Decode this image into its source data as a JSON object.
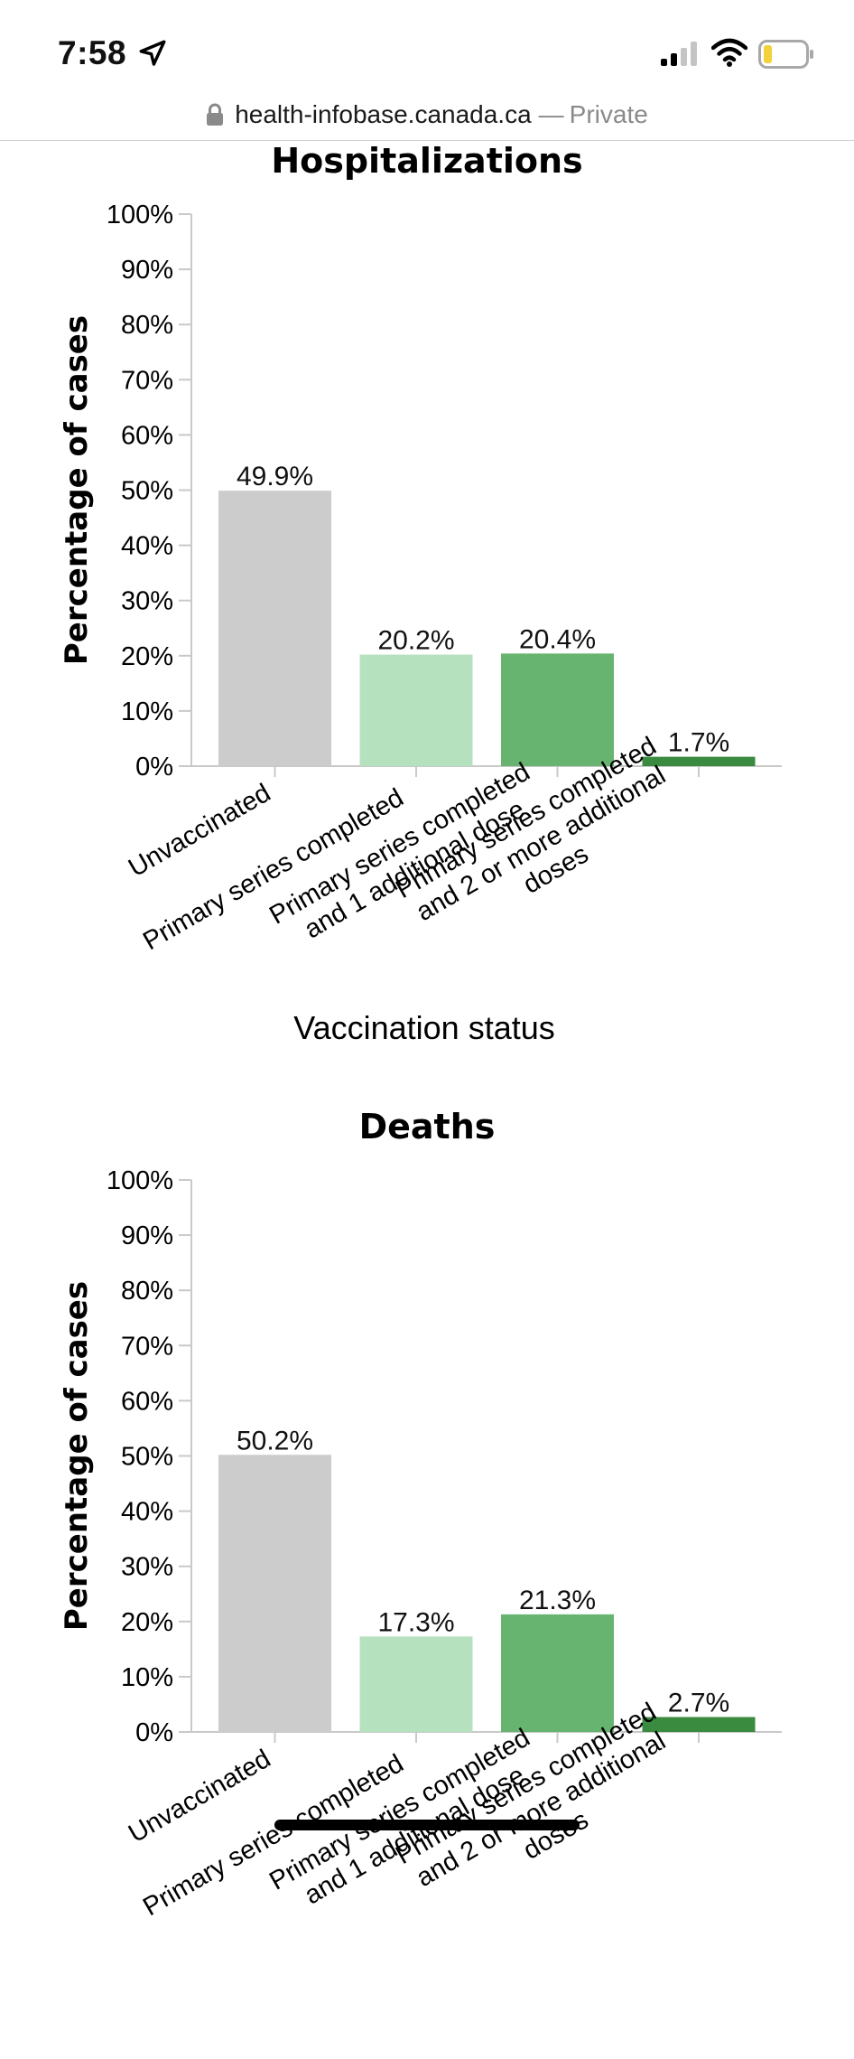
{
  "status_bar": {
    "time": "7:58",
    "icons": [
      "location-arrow-icon",
      "signal-icon",
      "wifi-icon",
      "battery-icon"
    ]
  },
  "browser": {
    "url_host": "health-infobase.canada.ca",
    "separator": "—",
    "mode": "Private"
  },
  "colors": {
    "Unvaccinated": "#cccccc",
    "Primary series completed": "#b6e1bf",
    "Primary series completed and 1 additional dose": "#66b46f",
    "Primary series completed and 2 or more additional doses": "#3a8a3f"
  },
  "chart_data": [
    {
      "type": "bar",
      "title": "Hospitalizations",
      "xlabel": "Vaccination status",
      "ylabel": "Percentage of cases",
      "ylim": [
        0,
        100
      ],
      "yticks": [
        "0%",
        "10%",
        "20%",
        "30%",
        "40%",
        "50%",
        "60%",
        "70%",
        "80%",
        "90%",
        "100%"
      ],
      "categories": [
        [
          "Unvaccinated"
        ],
        [
          "Primary series completed"
        ],
        [
          "Primary series completed",
          "and 1 additional dose"
        ],
        [
          "Primary series completed",
          "and 2 or more additional",
          "doses"
        ]
      ],
      "values": [
        49.9,
        20.2,
        20.4,
        1.7
      ],
      "value_labels": [
        "49.9%",
        "20.2%",
        "20.4%",
        "1.7%"
      ],
      "grid": false
    },
    {
      "type": "bar",
      "title": "Deaths",
      "xlabel": "",
      "ylabel": "Percentage of cases",
      "ylim": [
        0,
        100
      ],
      "yticks": [
        "0%",
        "10%",
        "20%",
        "30%",
        "40%",
        "50%",
        "60%",
        "70%",
        "80%",
        "90%",
        "100%"
      ],
      "categories": [
        [
          "Unvaccinated"
        ],
        [
          "Primary series completed"
        ],
        [
          "Primary series completed",
          "and 1 additional dose"
        ],
        [
          "Primary series completed",
          "and 2 or more additional",
          "doses"
        ]
      ],
      "values": [
        50.2,
        17.3,
        21.3,
        2.7
      ],
      "value_labels": [
        "50.2%",
        "17.3%",
        "21.3%",
        "2.7%"
      ],
      "grid": false
    }
  ]
}
